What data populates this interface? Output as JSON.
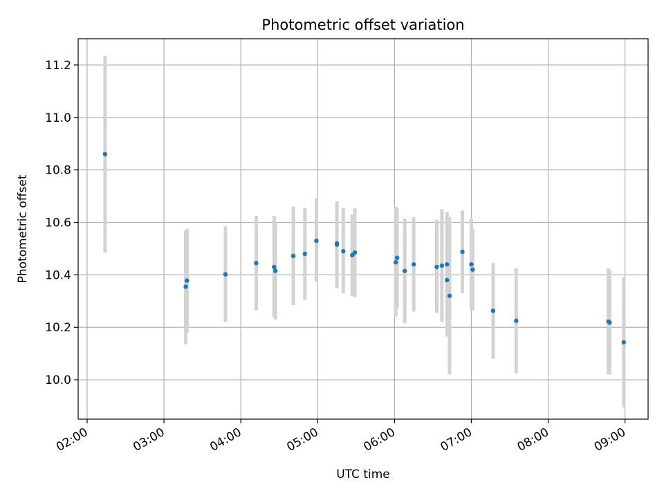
{
  "chart_data": {
    "type": "scatter",
    "title": "Photometric offset variation",
    "xlabel": "UTC time",
    "ylabel": "Photometric offset",
    "x_axis_type": "time",
    "xlim": [
      "01:53",
      "09:18"
    ],
    "ylim": [
      9.85,
      11.3
    ],
    "x_ticks": [
      "02:00",
      "03:00",
      "04:00",
      "05:00",
      "06:00",
      "07:00",
      "08:00",
      "09:00"
    ],
    "y_ticks": [
      "10.0",
      "10.2",
      "10.4",
      "10.6",
      "10.8",
      "11.0",
      "11.2"
    ],
    "grid": true,
    "colors": {
      "points": "#1f77b4",
      "errorbars": "#d3d3d3",
      "grid": "#b0b0b0"
    },
    "points": [
      {
        "x": "02:14",
        "y": 10.86,
        "err_low": 10.485,
        "err_high": 11.235
      },
      {
        "x": "03:17",
        "y": 10.355,
        "err_low": 10.135,
        "err_high": 10.57
      },
      {
        "x": "03:18",
        "y": 10.378,
        "err_low": 10.18,
        "err_high": 10.575
      },
      {
        "x": "03:48",
        "y": 10.402,
        "err_low": 10.22,
        "err_high": 10.585
      },
      {
        "x": "04:12",
        "y": 10.445,
        "err_low": 10.265,
        "err_high": 10.625
      },
      {
        "x": "04:26",
        "y": 10.43,
        "err_low": 10.24,
        "err_high": 10.625
      },
      {
        "x": "04:27",
        "y": 10.415,
        "err_low": 10.23,
        "err_high": 10.6
      },
      {
        "x": "04:41",
        "y": 10.472,
        "err_low": 10.285,
        "err_high": 10.66
      },
      {
        "x": "04:50",
        "y": 10.48,
        "err_low": 10.305,
        "err_high": 10.655
      },
      {
        "x": "04:59",
        "y": 10.53,
        "err_low": 10.375,
        "err_high": 10.69
      },
      {
        "x": "05:15",
        "y": 10.52,
        "err_low": 10.35,
        "err_high": 10.68
      },
      {
        "x": "05:15",
        "y": 10.515,
        "err_low": 10.35,
        "err_high": 10.68
      },
      {
        "x": "05:20",
        "y": 10.49,
        "err_low": 10.33,
        "err_high": 10.655
      },
      {
        "x": "05:27",
        "y": 10.475,
        "err_low": 10.32,
        "err_high": 10.63
      },
      {
        "x": "05:29",
        "y": 10.485,
        "err_low": 10.315,
        "err_high": 10.655
      },
      {
        "x": "06:01",
        "y": 10.448,
        "err_low": 10.24,
        "err_high": 10.66
      },
      {
        "x": "06:02",
        "y": 10.465,
        "err_low": 10.27,
        "err_high": 10.655
      },
      {
        "x": "06:08",
        "y": 10.415,
        "err_low": 10.215,
        "err_high": 10.615
      },
      {
        "x": "06:15",
        "y": 10.44,
        "err_low": 10.26,
        "err_high": 10.62
      },
      {
        "x": "06:33",
        "y": 10.43,
        "err_low": 10.255,
        "err_high": 10.61
      },
      {
        "x": "06:37",
        "y": 10.435,
        "err_low": 10.22,
        "err_high": 10.65
      },
      {
        "x": "06:41",
        "y": 10.38,
        "err_low": 10.165,
        "err_high": 10.6
      },
      {
        "x": "06:41",
        "y": 10.44,
        "err_low": 10.245,
        "err_high": 10.64
      },
      {
        "x": "06:43",
        "y": 10.32,
        "err_low": 10.02,
        "err_high": 10.62
      },
      {
        "x": "06:53",
        "y": 10.488,
        "err_low": 10.33,
        "err_high": 10.645
      },
      {
        "x": "07:00",
        "y": 10.44,
        "err_low": 10.265,
        "err_high": 10.615
      },
      {
        "x": "07:01",
        "y": 10.42,
        "err_low": 10.265,
        "err_high": 10.575
      },
      {
        "x": "07:17",
        "y": 10.263,
        "err_low": 10.08,
        "err_high": 10.445
      },
      {
        "x": "07:35",
        "y": 10.225,
        "err_low": 10.025,
        "err_high": 10.425
      },
      {
        "x": "08:47",
        "y": 10.222,
        "err_low": 10.02,
        "err_high": 10.425
      },
      {
        "x": "08:48",
        "y": 10.218,
        "err_low": 10.02,
        "err_high": 10.415
      },
      {
        "x": "08:59",
        "y": 10.143,
        "err_low": 9.895,
        "err_high": 10.39
      }
    ]
  }
}
